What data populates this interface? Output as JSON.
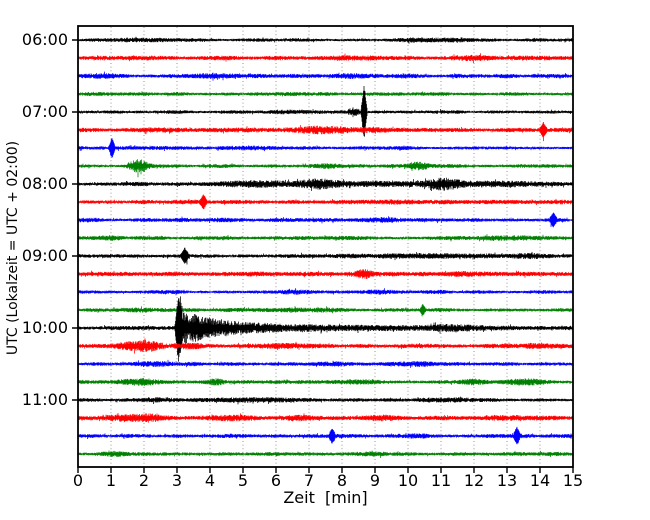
{
  "window": {
    "background": "#ffffff"
  },
  "chart_data": {
    "type": "line",
    "subtype": "seismogram-helicorder-dayplot",
    "title": "",
    "xlabel": "Zeit  [min]",
    "ylabel": "UTC (Lokalzeit = UTC + 02:00)",
    "xlim": [
      0,
      15
    ],
    "xtick_labels": [
      "0",
      "1",
      "2",
      "3",
      "4",
      "5",
      "6",
      "7",
      "8",
      "9",
      "10",
      "11",
      "12",
      "13",
      "14",
      "15"
    ],
    "ytick_labels": [
      "06:00",
      "07:00",
      "08:00",
      "09:00",
      "10:00",
      "11:00"
    ],
    "minutes_per_line": 15,
    "lines_per_hour": 4,
    "grid": {
      "vertical": "dotted",
      "color": "#8a8a8a",
      "horizontal": "none"
    },
    "color_cycle": [
      "#000000",
      "#ff0000",
      "#0000ff",
      "#008000"
    ],
    "axis_color": "#000000",
    "traces": [
      {
        "start": "06:00",
        "color": "#000000",
        "noise": 1.6,
        "events": [
          {
            "kind": "burst",
            "t": 1.9,
            "amp": 0.8,
            "w": 0.9
          },
          {
            "kind": "burst",
            "t": 10.35,
            "amp": 1.0,
            "w": 0.8
          },
          {
            "kind": "burst",
            "t": 11.45,
            "amp": 1.0,
            "w": 0.7
          }
        ]
      },
      {
        "start": "06:15",
        "color": "#ff0000",
        "noise": 2.0,
        "events": [
          {
            "kind": "burst",
            "t": 8.5,
            "amp": 0.9,
            "w": 1.0
          },
          {
            "kind": "burst",
            "t": 12.0,
            "amp": 0.8,
            "w": 0.8
          }
        ]
      },
      {
        "start": "06:30",
        "color": "#0000ff",
        "noise": 1.9,
        "events": [
          {
            "kind": "burst",
            "t": 0.9,
            "amp": 1.0,
            "w": 0.6
          },
          {
            "kind": "burst",
            "t": 3.9,
            "amp": 1.2,
            "w": 0.7
          },
          {
            "kind": "burst",
            "t": 8.3,
            "amp": 1.0,
            "w": 0.5
          },
          {
            "kind": "burst",
            "t": 9.9,
            "amp": 0.9,
            "w": 0.4
          }
        ]
      },
      {
        "start": "06:45",
        "color": "#008000",
        "noise": 1.7,
        "events": [
          {
            "kind": "burst",
            "t": 6.5,
            "amp": 0.6,
            "w": 1.0
          }
        ]
      },
      {
        "start": "07:00",
        "color": "#000000",
        "noise": 1.5,
        "events": [
          {
            "kind": "spike",
            "t": 8.67,
            "amp": 27,
            "w": 0.1
          },
          {
            "kind": "burst",
            "t": 8.35,
            "amp": 3.5,
            "w": 0.18
          },
          {
            "kind": "burst",
            "t": 6.4,
            "amp": 1.2,
            "w": 0.6
          },
          {
            "kind": "burst",
            "t": 2.9,
            "amp": 0.8,
            "w": 0.5
          }
        ]
      },
      {
        "start": "07:15",
        "color": "#ff0000",
        "noise": 2.0,
        "events": [
          {
            "kind": "burst",
            "t": 8.2,
            "amp": 1.4,
            "w": 1.4
          },
          {
            "kind": "burst",
            "t": 7.3,
            "amp": 1.2,
            "w": 0.5
          },
          {
            "kind": "burst",
            "t": 2.6,
            "amp": 1.0,
            "w": 0.5
          },
          {
            "kind": "spike",
            "t": 14.1,
            "amp": 7,
            "w": 0.12
          }
        ]
      },
      {
        "start": "07:30",
        "color": "#0000ff",
        "noise": 1.7,
        "events": [
          {
            "kind": "spike",
            "t": 1.03,
            "amp": 10,
            "w": 0.1
          },
          {
            "kind": "burst",
            "t": 5.3,
            "amp": 0.8,
            "w": 0.6
          }
        ]
      },
      {
        "start": "07:45",
        "color": "#008000",
        "noise": 1.7,
        "events": [
          {
            "kind": "burst",
            "t": 1.82,
            "amp": 5.5,
            "w": 0.28
          },
          {
            "kind": "burst",
            "t": 10.3,
            "amp": 3.0,
            "w": 0.35
          },
          {
            "kind": "burst",
            "t": 7.6,
            "amp": 1.0,
            "w": 0.4
          }
        ]
      },
      {
        "start": "08:00",
        "color": "#000000",
        "noise": 1.8,
        "events": [
          {
            "kind": "burst",
            "t": 8.3,
            "amp": 1.6,
            "w": 4.0
          },
          {
            "kind": "burst",
            "t": 7.3,
            "amp": 2.5,
            "w": 0.5
          },
          {
            "kind": "burst",
            "t": 11.05,
            "amp": 3.5,
            "w": 0.45
          },
          {
            "kind": "burst",
            "t": 5.0,
            "amp": 1.2,
            "w": 0.9
          },
          {
            "kind": "burst",
            "t": 12.5,
            "amp": 1.2,
            "w": 1.2
          }
        ]
      },
      {
        "start": "08:15",
        "color": "#ff0000",
        "noise": 2.0,
        "events": [
          {
            "kind": "spike",
            "t": 3.8,
            "amp": 6.5,
            "w": 0.12
          },
          {
            "kind": "burst",
            "t": 9.0,
            "amp": 0.8,
            "w": 0.8
          }
        ]
      },
      {
        "start": "08:30",
        "color": "#0000ff",
        "noise": 1.8,
        "events": [
          {
            "kind": "spike",
            "t": 14.4,
            "amp": 6.5,
            "w": 0.12
          },
          {
            "kind": "burst",
            "t": 4.4,
            "amp": 1.0,
            "w": 0.5
          },
          {
            "kind": "burst",
            "t": 9.2,
            "amp": 0.9,
            "w": 0.6
          }
        ]
      },
      {
        "start": "08:45",
        "color": "#008000",
        "noise": 1.8,
        "events": [
          {
            "kind": "burst",
            "t": 12.9,
            "amp": 1.2,
            "w": 0.9
          },
          {
            "kind": "burst",
            "t": 0.9,
            "amp": 0.8,
            "w": 0.5
          }
        ]
      },
      {
        "start": "09:00",
        "color": "#000000",
        "noise": 1.6,
        "events": [
          {
            "kind": "spike",
            "t": 3.24,
            "amp": 7.5,
            "w": 0.13
          },
          {
            "kind": "burst",
            "t": 10.5,
            "amp": 1.2,
            "w": 2.5
          },
          {
            "kind": "burst",
            "t": 13.8,
            "amp": 1.2,
            "w": 0.8
          }
        ]
      },
      {
        "start": "09:15",
        "color": "#ff0000",
        "noise": 2.0,
        "events": [
          {
            "kind": "burst",
            "t": 8.72,
            "amp": 3.0,
            "w": 0.28
          },
          {
            "kind": "burst",
            "t": 5.4,
            "amp": 1.0,
            "w": 0.5
          },
          {
            "kind": "burst",
            "t": 11.8,
            "amp": 0.8,
            "w": 0.6
          }
        ]
      },
      {
        "start": "09:30",
        "color": "#0000ff",
        "noise": 1.7,
        "events": [
          {
            "kind": "burst",
            "t": 9.2,
            "amp": 1.0,
            "w": 0.6
          },
          {
            "kind": "burst",
            "t": 6.4,
            "amp": 0.8,
            "w": 0.5
          }
        ]
      },
      {
        "start": "09:45",
        "color": "#008000",
        "noise": 1.7,
        "events": [
          {
            "kind": "spike",
            "t": 10.45,
            "amp": 5,
            "w": 0.1
          },
          {
            "kind": "burst",
            "t": 1.6,
            "amp": 0.9,
            "w": 0.6
          },
          {
            "kind": "burst",
            "t": 6.9,
            "amp": 1.0,
            "w": 0.8
          }
        ]
      },
      {
        "start": "10:00",
        "color": "#000000",
        "noise": 1.7,
        "events": [
          {
            "kind": "spike",
            "t": 3.05,
            "amp": 36,
            "w": 0.12
          },
          {
            "kind": "decay",
            "t": 3.1,
            "amp": 14,
            "w": 1.1
          },
          {
            "kind": "decay",
            "t": 3.1,
            "amp": 3.0,
            "w": 6.0
          },
          {
            "kind": "burst",
            "t": 11.2,
            "amp": 1.5,
            "w": 1.0
          }
        ]
      },
      {
        "start": "10:15",
        "color": "#ff0000",
        "noise": 2.0,
        "events": [
          {
            "kind": "burst",
            "t": 2.1,
            "amp": 4.5,
            "w": 0.4
          },
          {
            "kind": "burst",
            "t": 1.5,
            "amp": 2.5,
            "w": 0.35
          },
          {
            "kind": "burst",
            "t": 3.4,
            "amp": 1.5,
            "w": 0.4
          },
          {
            "kind": "burst",
            "t": 13.8,
            "amp": 1.2,
            "w": 0.6
          },
          {
            "kind": "burst",
            "t": 6.1,
            "amp": 0.9,
            "w": 0.6
          }
        ]
      },
      {
        "start": "10:30",
        "color": "#0000ff",
        "noise": 1.8,
        "events": [
          {
            "kind": "burst",
            "t": 7.8,
            "amp": 1.0,
            "w": 0.6
          },
          {
            "kind": "burst",
            "t": 10.2,
            "amp": 1.0,
            "w": 0.5
          },
          {
            "kind": "burst",
            "t": 2.5,
            "amp": 0.8,
            "w": 0.7
          }
        ]
      },
      {
        "start": "10:45",
        "color": "#008000",
        "noise": 1.8,
        "events": [
          {
            "kind": "burst",
            "t": 1.9,
            "amp": 1.8,
            "w": 0.7
          },
          {
            "kind": "burst",
            "t": 4.2,
            "amp": 2.2,
            "w": 0.22
          },
          {
            "kind": "burst",
            "t": 13.5,
            "amp": 2.2,
            "w": 0.55
          },
          {
            "kind": "burst",
            "t": 11.9,
            "amp": 1.2,
            "w": 0.5
          },
          {
            "kind": "burst",
            "t": 8.6,
            "amp": 1.0,
            "w": 0.7
          }
        ]
      },
      {
        "start": "11:00",
        "color": "#000000",
        "noise": 1.7,
        "events": [
          {
            "kind": "burst",
            "t": 5.3,
            "amp": 1.2,
            "w": 1.2
          },
          {
            "kind": "burst",
            "t": 2.4,
            "amp": 0.9,
            "w": 0.7
          },
          {
            "kind": "burst",
            "t": 11.4,
            "amp": 1.0,
            "w": 0.9
          }
        ]
      },
      {
        "start": "11:15",
        "color": "#ff0000",
        "noise": 2.1,
        "events": [
          {
            "kind": "burst",
            "t": 1.4,
            "amp": 1.6,
            "w": 0.6
          },
          {
            "kind": "burst",
            "t": 2.2,
            "amp": 1.8,
            "w": 0.4
          },
          {
            "kind": "burst",
            "t": 4.7,
            "amp": 1.6,
            "w": 0.8
          },
          {
            "kind": "burst",
            "t": 9.3,
            "amp": 1.5,
            "w": 0.5
          },
          {
            "kind": "burst",
            "t": 13.2,
            "amp": 1.2,
            "w": 0.5
          },
          {
            "kind": "burst",
            "t": 6.8,
            "amp": 1.0,
            "w": 0.6
          }
        ]
      },
      {
        "start": "11:30",
        "color": "#0000ff",
        "noise": 1.8,
        "events": [
          {
            "kind": "spike",
            "t": 7.7,
            "amp": 7,
            "w": 0.11
          },
          {
            "kind": "spike",
            "t": 13.3,
            "amp": 8,
            "w": 0.11
          },
          {
            "kind": "burst",
            "t": 10.3,
            "amp": 1.0,
            "w": 0.4
          }
        ]
      },
      {
        "start": "11:45",
        "color": "#008000",
        "noise": 1.7,
        "events": [
          {
            "kind": "burst",
            "t": 1.05,
            "amp": 1.8,
            "w": 0.45
          },
          {
            "kind": "burst",
            "t": 9.0,
            "amp": 0.7,
            "w": 0.8
          }
        ]
      }
    ]
  }
}
